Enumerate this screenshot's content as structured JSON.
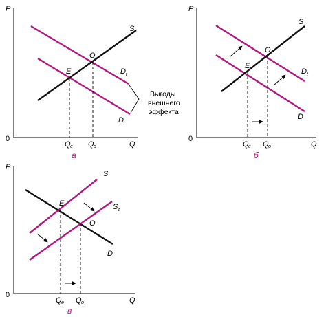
{
  "axes": {
    "p": "P",
    "q": "Q",
    "origin": "0"
  },
  "panel_a": {
    "caption": "а",
    "supply": "S",
    "demand": "D",
    "demand_social": "D",
    "demand_social_sub": "t",
    "point_e": "E",
    "point_o": "O",
    "qe": "Q",
    "qe_sub": "e",
    "qo": "Q",
    "qo_sub": "o",
    "note_lines": [
      "Выгоды",
      "внешнего",
      "эффекта"
    ]
  },
  "panel_b": {
    "caption": "б",
    "supply": "S",
    "demand": "D",
    "demand_social": "D",
    "demand_social_sub": "t",
    "point_e": "E",
    "point_o": "O",
    "qe": "Q",
    "qe_sub": "e",
    "qo": "Q",
    "qo_sub": "o"
  },
  "panel_c": {
    "caption": "в",
    "supply": "S",
    "supply_shifted": "S",
    "supply_shifted_sub": "t",
    "demand": "D",
    "point_e": "E",
    "point_o": "O",
    "qe": "Q",
    "qe_sub": "e",
    "qo": "Q",
    "qo_sub": "o"
  },
  "colors": {
    "demand": "#b0187f",
    "supply": "#111111",
    "caption": "#b0187f"
  }
}
